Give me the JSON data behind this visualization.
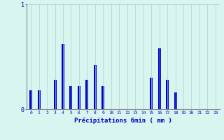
{
  "xlabel": "Précipitations 6min ( mm )",
  "hours": [
    0,
    1,
    2,
    3,
    4,
    5,
    6,
    7,
    8,
    9,
    10,
    11,
    12,
    13,
    14,
    15,
    16,
    17,
    18,
    19,
    20,
    21,
    22,
    23
  ],
  "values": [
    0.18,
    0.18,
    0,
    0.28,
    0.62,
    0.22,
    0.22,
    0.28,
    0.42,
    0.22,
    0,
    0,
    0,
    0,
    0,
    0.3,
    0.58,
    0.28,
    0.16,
    0,
    0,
    0,
    0,
    0
  ],
  "bar_color": "#0000cc",
  "bg_color": "#d8f5f0",
  "grid_color": "#b0d0cc",
  "axis_color": "#888888",
  "text_color": "#0000cc",
  "ylim": [
    0,
    1.0
  ],
  "yticks": [
    0,
    1
  ],
  "ytick_labels": [
    "0",
    "1"
  ],
  "xlim": [
    -0.5,
    23.5
  ],
  "bar_width": 0.35
}
